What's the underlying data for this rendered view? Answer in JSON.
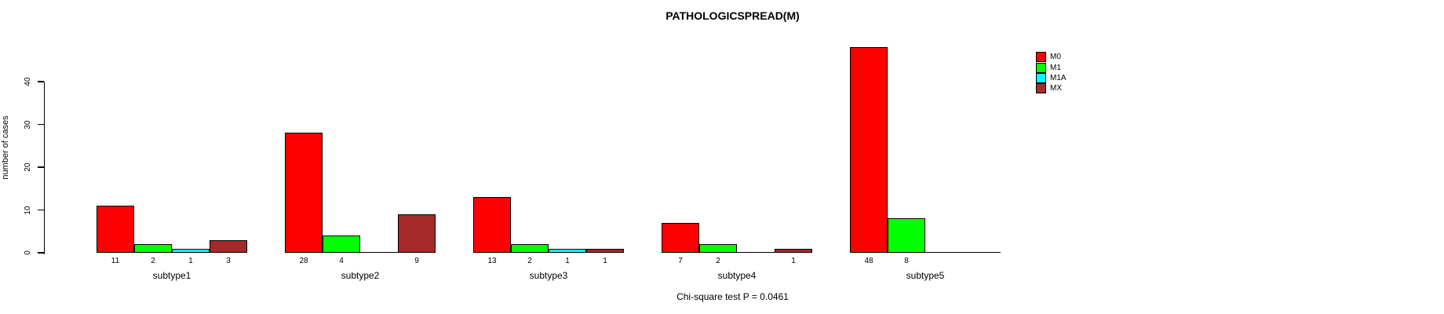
{
  "chart_data": {
    "type": "bar",
    "grouped": true,
    "title": "PATHOLOGICSPREAD(M)",
    "note": "Chi-square test P = 0.0461",
    "xlabel": "",
    "ylabel": "number of cases",
    "categories": [
      "subtype1",
      "subtype2",
      "subtype3",
      "subtype4",
      "subtype5"
    ],
    "series": [
      {
        "name": "M0",
        "color": "#FF0000",
        "values": [
          11,
          28,
          13,
          7,
          48
        ]
      },
      {
        "name": "M1",
        "color": "#00FF00",
        "values": [
          2,
          4,
          2,
          2,
          8
        ]
      },
      {
        "name": "M1A",
        "color": "#00FFFF",
        "values": [
          1,
          0,
          1,
          0,
          0
        ]
      },
      {
        "name": "MX",
        "color": "#A52A2A",
        "values": [
          3,
          9,
          1,
          1,
          0
        ]
      }
    ],
    "yticks": [
      0,
      10,
      20,
      30,
      40
    ],
    "ylim": [
      0,
      48
    ],
    "value_labels": "shown under each nonzero bar",
    "legend_position": "top-right",
    "grid": false,
    "colors": {
      "axis": "#000000",
      "text": "#000000",
      "background": "#FFFFFF"
    }
  }
}
